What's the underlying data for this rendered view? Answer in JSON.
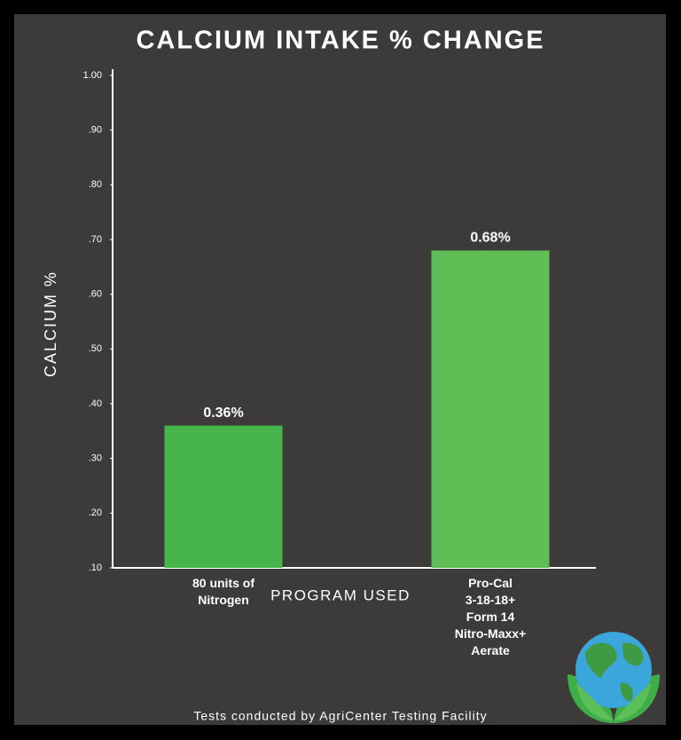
{
  "chart_data": {
    "type": "bar",
    "title": "CALCIUM INTAKE % CHANGE",
    "y_label": "CALCIUM %",
    "x_label": "PROGRAM USED",
    "footer": "Tests conducted by AgriCenter Testing Facility",
    "categories": [
      "80 units of\nNitrogen",
      "Pro-Cal\n3-18-18+\nForm 14\nNitro-Maxx+\nAerate"
    ],
    "values": [
      0.36,
      0.68
    ],
    "value_labels": [
      "0.36%",
      "0.68%"
    ],
    "colors": [
      "#46b64b",
      "#60be57"
    ],
    "ylim": [
      0.1,
      1.0
    ],
    "yticks": [
      {
        "value": 1.0,
        "label": "1.00"
      },
      {
        "value": 0.9,
        "label": ".90"
      },
      {
        "value": 0.8,
        "label": ".80"
      },
      {
        "value": 0.7,
        "label": ".70"
      },
      {
        "value": 0.6,
        "label": ".60"
      },
      {
        "value": 0.5,
        "label": ".50"
      },
      {
        "value": 0.4,
        "label": ".40"
      },
      {
        "value": 0.3,
        "label": ".30"
      },
      {
        "value": 0.2,
        "label": ".20"
      },
      {
        "value": 0.1,
        "label": ".10"
      }
    ],
    "grid": false
  }
}
